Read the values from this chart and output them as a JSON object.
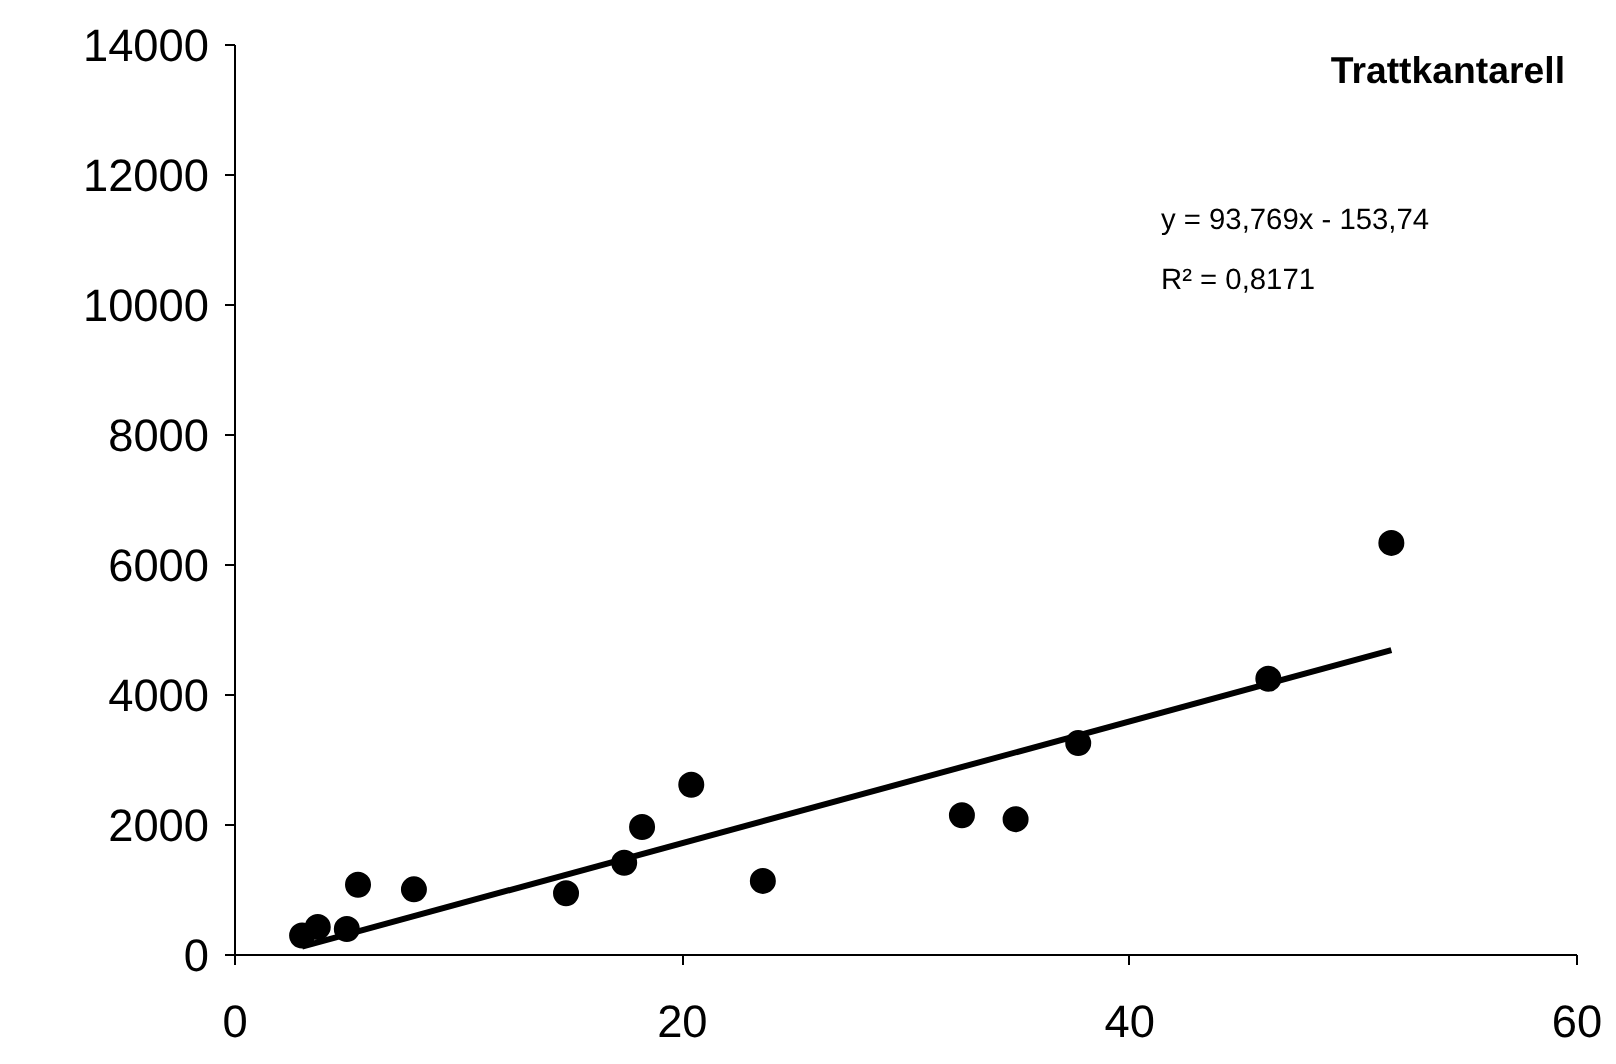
{
  "chart_data": {
    "type": "scatter",
    "title": "Trattkantarell",
    "x": [
      3.0,
      3.7,
      5.0,
      5.5,
      8.0,
      14.8,
      17.4,
      18.2,
      20.4,
      23.6,
      32.5,
      34.9,
      37.7,
      46.2,
      51.7
    ],
    "series": [
      {
        "color": "#000000",
        "marker": "circle",
        "values": [
          300,
          430,
          400,
          1080,
          1010,
          950,
          1420,
          1970,
          2620,
          1140,
          2150,
          2090,
          3260,
          4250,
          6340
        ]
      },
      {
        "type": "line",
        "color": "#000000",
        "x": [
          3.0,
          51.7
        ],
        "values": [
          130,
          4690
        ]
      }
    ],
    "annotations": [
      "y = 93,769x - 153,74",
      "R² = 0,8171"
    ],
    "xlim": [
      0,
      60
    ],
    "xticks": [
      0,
      20,
      40,
      60
    ],
    "ylim": [
      0,
      14000
    ],
    "yticks": [
      0,
      2000,
      4000,
      6000,
      8000,
      10000,
      12000,
      14000
    ],
    "grid": false
  }
}
